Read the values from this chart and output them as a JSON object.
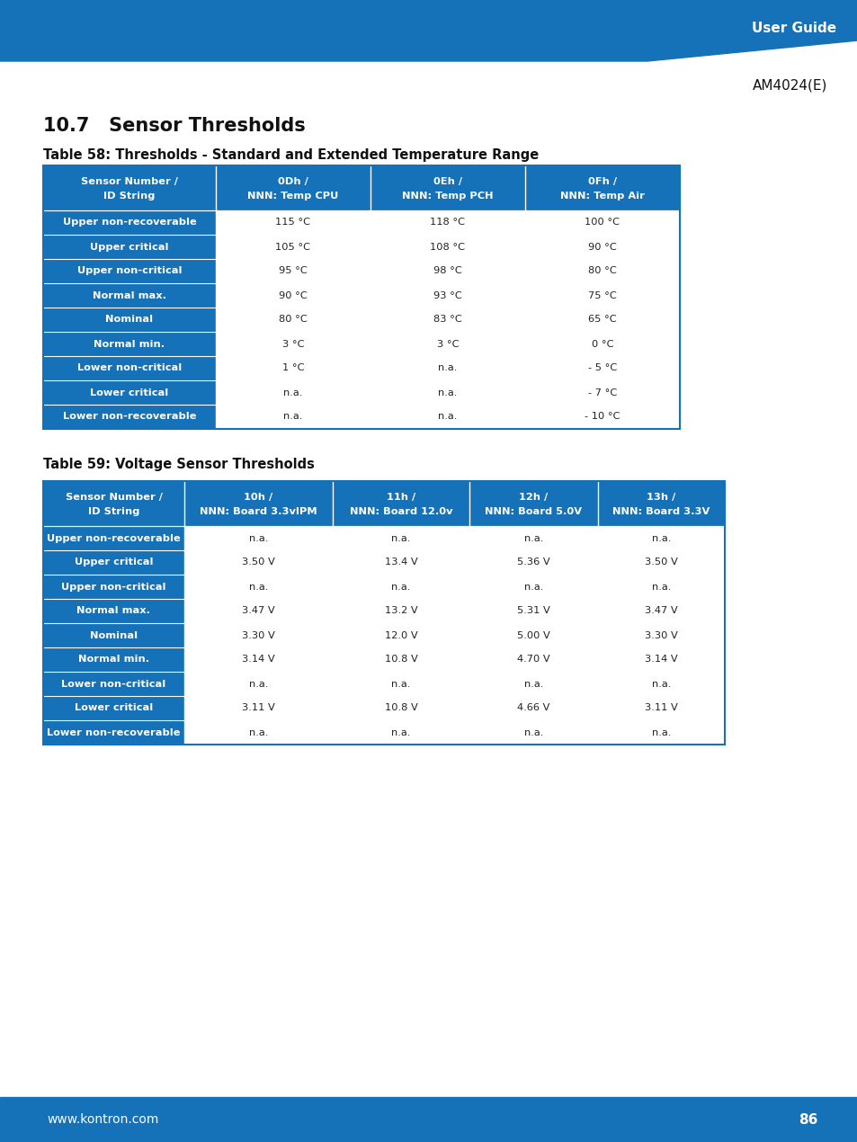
{
  "header_bg": "#1571b8",
  "header_text": "#ffffff",
  "row_bg_dark": "#1571b8",
  "row_bg_light": "#ffffff",
  "row_text_dark": "#ffffff",
  "row_text_light": "#222222",
  "border_color": "#ffffff",
  "page_bg": "#ffffff",
  "top_bar_color": "#1571b8",
  "bottom_bar_color": "#1571b8",
  "section_title": "10.7   Sensor Thresholds",
  "table1_title": "Table 58: Thresholds - Standard and Extended Temperature Range",
  "table1_headers": [
    "Sensor Number /\nID String",
    "0Dh /\nNNN: Temp CPU",
    "0Eh /\nNNN: Temp PCH",
    "0Fh /\nNNN: Temp Air"
  ],
  "table1_rows": [
    [
      "Upper non-recoverable",
      "115 °C",
      "118 °C",
      "100 °C"
    ],
    [
      "Upper critical",
      "105 °C",
      "108 °C",
      "90 °C"
    ],
    [
      "Upper non-critical",
      "95 °C",
      "98 °C",
      "80 °C"
    ],
    [
      "Normal max.",
      "90 °C",
      "93 °C",
      "75 °C"
    ],
    [
      "Nominal",
      "80 °C",
      "83 °C",
      "65 °C"
    ],
    [
      "Normal min.",
      "3 °C",
      "3 °C",
      "0 °C"
    ],
    [
      "Lower non-critical",
      "1 °C",
      "n.a.",
      "- 5 °C"
    ],
    [
      "Lower critical",
      "n.a.",
      "n.a.",
      "- 7 °C"
    ],
    [
      "Lower non-recoverable",
      "n.a.",
      "n.a.",
      "- 10 °C"
    ]
  ],
  "table2_title": "Table 59: Voltage Sensor Thresholds",
  "table2_headers": [
    "Sensor Number /\nID String",
    "10h /\nNNN: Board 3.3vIPM",
    "11h /\nNNN: Board 12.0v",
    "12h /\nNNN: Board 5.0V",
    "13h /\nNNN: Board 3.3V"
  ],
  "table2_rows": [
    [
      "Upper non-recoverable",
      "n.a.",
      "n.a.",
      "n.a.",
      "n.a."
    ],
    [
      "Upper critical",
      "3.50 V",
      "13.4 V",
      "5.36 V",
      "3.50 V"
    ],
    [
      "Upper non-critical",
      "n.a.",
      "n.a.",
      "n.a.",
      "n.a."
    ],
    [
      "Normal max.",
      "3.47 V",
      "13.2 V",
      "5.31 V",
      "3.47 V"
    ],
    [
      "Nominal",
      "3.30 V",
      "12.0 V",
      "5.00 V",
      "3.30 V"
    ],
    [
      "Normal min.",
      "3.14 V",
      "10.8 V",
      "4.70 V",
      "3.14 V"
    ],
    [
      "Lower non-critical",
      "n.a.",
      "n.a.",
      "n.a.",
      "n.a."
    ],
    [
      "Lower critical",
      "3.11 V",
      "10.8 V",
      "4.66 V",
      "3.11 V"
    ],
    [
      "Lower non-recoverable",
      "n.a.",
      "n.a.",
      "n.a.",
      "n.a."
    ]
  ],
  "footer_text": "www.kontron.com",
  "page_number": "86",
  "model_text": "AM4024(E)",
  "user_guide_text": "User Guide"
}
